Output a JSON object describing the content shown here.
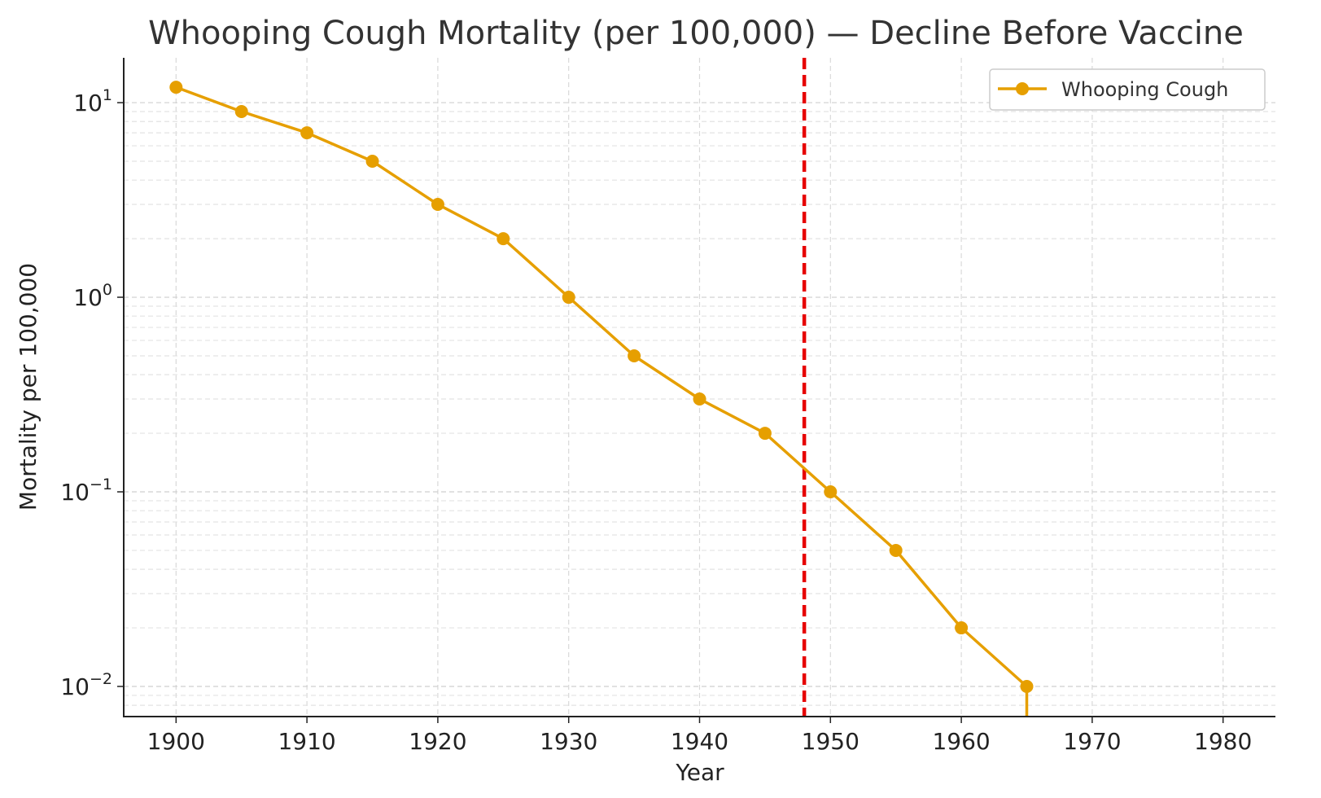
{
  "chart_data": {
    "type": "line",
    "title": "Whooping Cough Mortality (per 100,000) — Decline Before Vaccine",
    "xlabel": "Year",
    "ylabel": "Mortality per 100,000",
    "xlim": [
      1896,
      1984
    ],
    "ylim": [
      0.007,
      17
    ],
    "yscale": "log",
    "grid": true,
    "legend_position": "top-right",
    "x_ticks": [
      1900,
      1910,
      1920,
      1930,
      1940,
      1950,
      1960,
      1970,
      1980
    ],
    "y_ticks": [
      {
        "value": 10,
        "base": "10",
        "exp": "1"
      },
      {
        "value": 1,
        "base": "10",
        "exp": "0"
      },
      {
        "value": 0.1,
        "base": "10",
        "exp": "−1"
      },
      {
        "value": 0.01,
        "base": "10",
        "exp": "−2"
      }
    ],
    "series": [
      {
        "name": "Whooping Cough",
        "color": "#e69f00",
        "x": [
          1900,
          1905,
          1910,
          1915,
          1920,
          1925,
          1930,
          1935,
          1940,
          1945,
          1950,
          1955,
          1960,
          1965
        ],
        "y": [
          12,
          9,
          7,
          5,
          3,
          2,
          1,
          0.5,
          0.3,
          0.2,
          0.1,
          0.05,
          0.02,
          0.01
        ]
      }
    ],
    "drop_to_zero_after": 1965,
    "reference_line": {
      "x": 1948,
      "color": "#e60000",
      "style": "dashed"
    }
  }
}
